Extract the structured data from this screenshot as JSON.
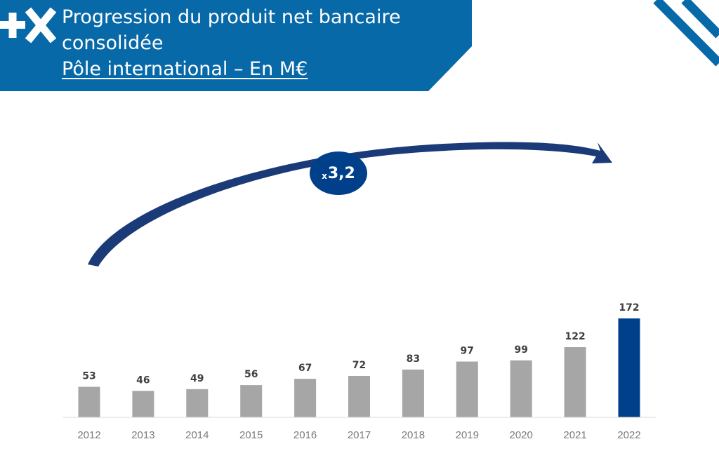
{
  "header": {
    "title_line1": "Progression du produit net bancaire",
    "title_line2": "consolidée",
    "subtitle": "Pôle international – En M€",
    "logo_icon": "plus-x-logo-icon",
    "banner_color": "#0869a8"
  },
  "annotation": {
    "multiplier_prefix": "x",
    "multiplier_value": "3,2",
    "circle_color": "#003f8a",
    "arrow_color": "#1b3a78"
  },
  "chart_data": {
    "type": "bar",
    "categories": [
      "2012",
      "2013",
      "2014",
      "2015",
      "2016",
      "2017",
      "2018",
      "2019",
      "2020",
      "2021",
      "2022"
    ],
    "values": [
      53,
      46,
      49,
      56,
      67,
      72,
      83,
      97,
      99,
      122,
      172
    ],
    "value_labels": [
      "53",
      "46",
      "49",
      "56",
      "67",
      "72",
      "83",
      "97",
      "99",
      "122",
      "172"
    ],
    "title": "",
    "xlabel": "",
    "ylabel": "",
    "ylim": [
      0,
      180
    ],
    "grid": false,
    "legend": "none",
    "bar_color": "#a6a6a6",
    "highlight_category": "2022",
    "highlight_color": "#003f8a"
  }
}
